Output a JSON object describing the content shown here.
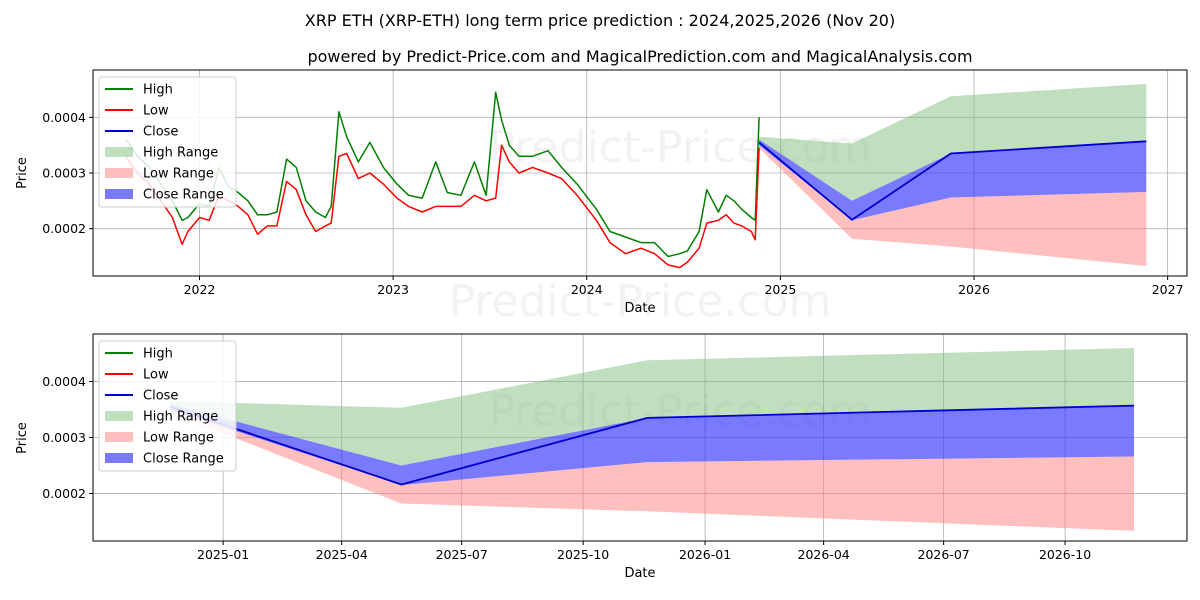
{
  "title": "XRP ETH (XRP-ETH) long term price prediction : 2024,2025,2026 (Nov 20)",
  "subtitle": "powered by Predict-Price.com and MagicalPrediction.com and MagicalAnalysis.com",
  "watermark": "Predict-Price.com",
  "colors": {
    "high": "#008000",
    "low": "#ff0000",
    "close": "#0000cc",
    "high_range": "#7fc07f",
    "low_range": "#ff8080",
    "close_range": "#3333ff",
    "grid": "#b0b0b0"
  },
  "chart_data": [
    {
      "type": "line",
      "panel": "top",
      "xlabel": "Date",
      "ylabel": "Price",
      "xlim": [
        2021.45,
        2027.1
      ],
      "ylim": [
        0.000115,
        0.000485
      ],
      "grid": true,
      "legend_position": "upper-left",
      "x_ticks": [
        {
          "value": 2022,
          "label": "2022"
        },
        {
          "value": 2023,
          "label": "2023"
        },
        {
          "value": 2024,
          "label": "2024"
        },
        {
          "value": 2025,
          "label": "2025"
        },
        {
          "value": 2026,
          "label": "2026"
        },
        {
          "value": 2027,
          "label": "2027"
        }
      ],
      "y_ticks": [
        {
          "value": 0.0002,
          "label": "0.0002"
        },
        {
          "value": 0.0003,
          "label": "0.0003"
        },
        {
          "value": 0.0004,
          "label": "0.0004"
        }
      ],
      "legend": [
        "High",
        "Low",
        "Close",
        "High Range",
        "Low Range",
        "Close Range"
      ],
      "history": {
        "x": [
          2021.62,
          2021.68,
          2021.74,
          2021.8,
          2021.86,
          2021.91,
          2021.94,
          2022.0,
          2022.05,
          2022.1,
          2022.15,
          2022.2,
          2022.25,
          2022.3,
          2022.35,
          2022.4,
          2022.45,
          2022.5,
          2022.55,
          2022.6,
          2022.65,
          2022.68,
          2022.72,
          2022.76,
          2022.82,
          2022.88,
          2022.95,
          2023.02,
          2023.08,
          2023.15,
          2023.22,
          2023.28,
          2023.35,
          2023.42,
          2023.48,
          2023.53,
          2023.56,
          2023.6,
          2023.65,
          2023.72,
          2023.8,
          2023.87,
          2023.95,
          2024.05,
          2024.12,
          2024.2,
          2024.28,
          2024.35,
          2024.42,
          2024.48,
          2024.52,
          2024.58,
          2024.62,
          2024.68,
          2024.72,
          2024.76,
          2024.8,
          2024.85,
          2024.87,
          2024.89
        ],
        "high": [
          0.00036,
          0.00033,
          0.00031,
          0.00028,
          0.00025,
          0.000215,
          0.00022,
          0.000245,
          0.00024,
          0.00031,
          0.000275,
          0.000265,
          0.00025,
          0.000225,
          0.000225,
          0.00023,
          0.000325,
          0.00031,
          0.00025,
          0.00023,
          0.00022,
          0.00024,
          0.00041,
          0.000365,
          0.00032,
          0.000355,
          0.00031,
          0.00028,
          0.00026,
          0.000255,
          0.00032,
          0.000265,
          0.00026,
          0.00032,
          0.00026,
          0.000445,
          0.000395,
          0.00035,
          0.00033,
          0.00033,
          0.00034,
          0.00031,
          0.00028,
          0.000235,
          0.000195,
          0.000185,
          0.000175,
          0.000175,
          0.00015,
          0.000155,
          0.00016,
          0.000195,
          0.00027,
          0.00023,
          0.00026,
          0.00025,
          0.000235,
          0.00022,
          0.000215,
          0.0004
        ],
        "low": [
          0.00033,
          0.0003,
          0.00028,
          0.00025,
          0.00022,
          0.000172,
          0.000195,
          0.00022,
          0.000215,
          0.00026,
          0.00025,
          0.00024,
          0.000225,
          0.00019,
          0.000205,
          0.000205,
          0.000285,
          0.00027,
          0.000225,
          0.000195,
          0.000205,
          0.00021,
          0.00033,
          0.000335,
          0.00029,
          0.0003,
          0.00028,
          0.000255,
          0.00024,
          0.00023,
          0.00024,
          0.00024,
          0.00024,
          0.00026,
          0.00025,
          0.000255,
          0.00035,
          0.00032,
          0.0003,
          0.00031,
          0.0003,
          0.00029,
          0.00026,
          0.000215,
          0.000175,
          0.000155,
          0.000165,
          0.000155,
          0.000135,
          0.00013,
          0.00014,
          0.000165,
          0.00021,
          0.000215,
          0.000225,
          0.00021,
          0.000205,
          0.000195,
          0.00018,
          0.000345
        ]
      },
      "forecast": {
        "x": [
          2024.89,
          2025.37,
          2025.88,
          2026.89
        ],
        "high": [
          0.000365,
          0.000353,
          0.000438,
          0.00046
        ],
        "low": [
          0.000345,
          0.000182,
          0.000168,
          0.000133
        ],
        "close_high": [
          0.00036,
          0.00025,
          0.000335,
          0.000357
        ],
        "close_low": [
          0.00035,
          0.000215,
          0.000256,
          0.000266
        ],
        "close": [
          0.000355,
          0.000216,
          0.000335,
          0.000357
        ]
      }
    },
    {
      "type": "area",
      "panel": "bottom",
      "xlabel": "Date",
      "ylabel": "Price",
      "xlim": [
        2024.73,
        2027.0
      ],
      "ylim": [
        0.000115,
        0.000485
      ],
      "grid": true,
      "legend_position": "upper-left",
      "x_ticks": [
        {
          "value": 2025.0,
          "label": "2025-01"
        },
        {
          "value": 2025.246,
          "label": "2025-04"
        },
        {
          "value": 2025.495,
          "label": "2025-07"
        },
        {
          "value": 2025.747,
          "label": "2025-10"
        },
        {
          "value": 2026.0,
          "label": "2026-01"
        },
        {
          "value": 2026.246,
          "label": "2026-04"
        },
        {
          "value": 2026.495,
          "label": "2026-07"
        },
        {
          "value": 2026.747,
          "label": "2026-10"
        }
      ],
      "y_ticks": [
        {
          "value": 0.0002,
          "label": "0.0002"
        },
        {
          "value": 0.0003,
          "label": "0.0003"
        },
        {
          "value": 0.0004,
          "label": "0.0004"
        }
      ],
      "legend": [
        "High",
        "Low",
        "Close",
        "High Range",
        "Low Range",
        "Close Range"
      ],
      "forecast": {
        "x": [
          2024.89,
          2025.37,
          2025.88,
          2026.89
        ],
        "high": [
          0.000365,
          0.000353,
          0.000438,
          0.00046
        ],
        "low": [
          0.000345,
          0.000182,
          0.000168,
          0.000133
        ],
        "close_high": [
          0.00036,
          0.00025,
          0.000335,
          0.000357
        ],
        "close_low": [
          0.00035,
          0.000215,
          0.000256,
          0.000266
        ],
        "close": [
          0.000355,
          0.000216,
          0.000335,
          0.000357
        ]
      }
    }
  ]
}
